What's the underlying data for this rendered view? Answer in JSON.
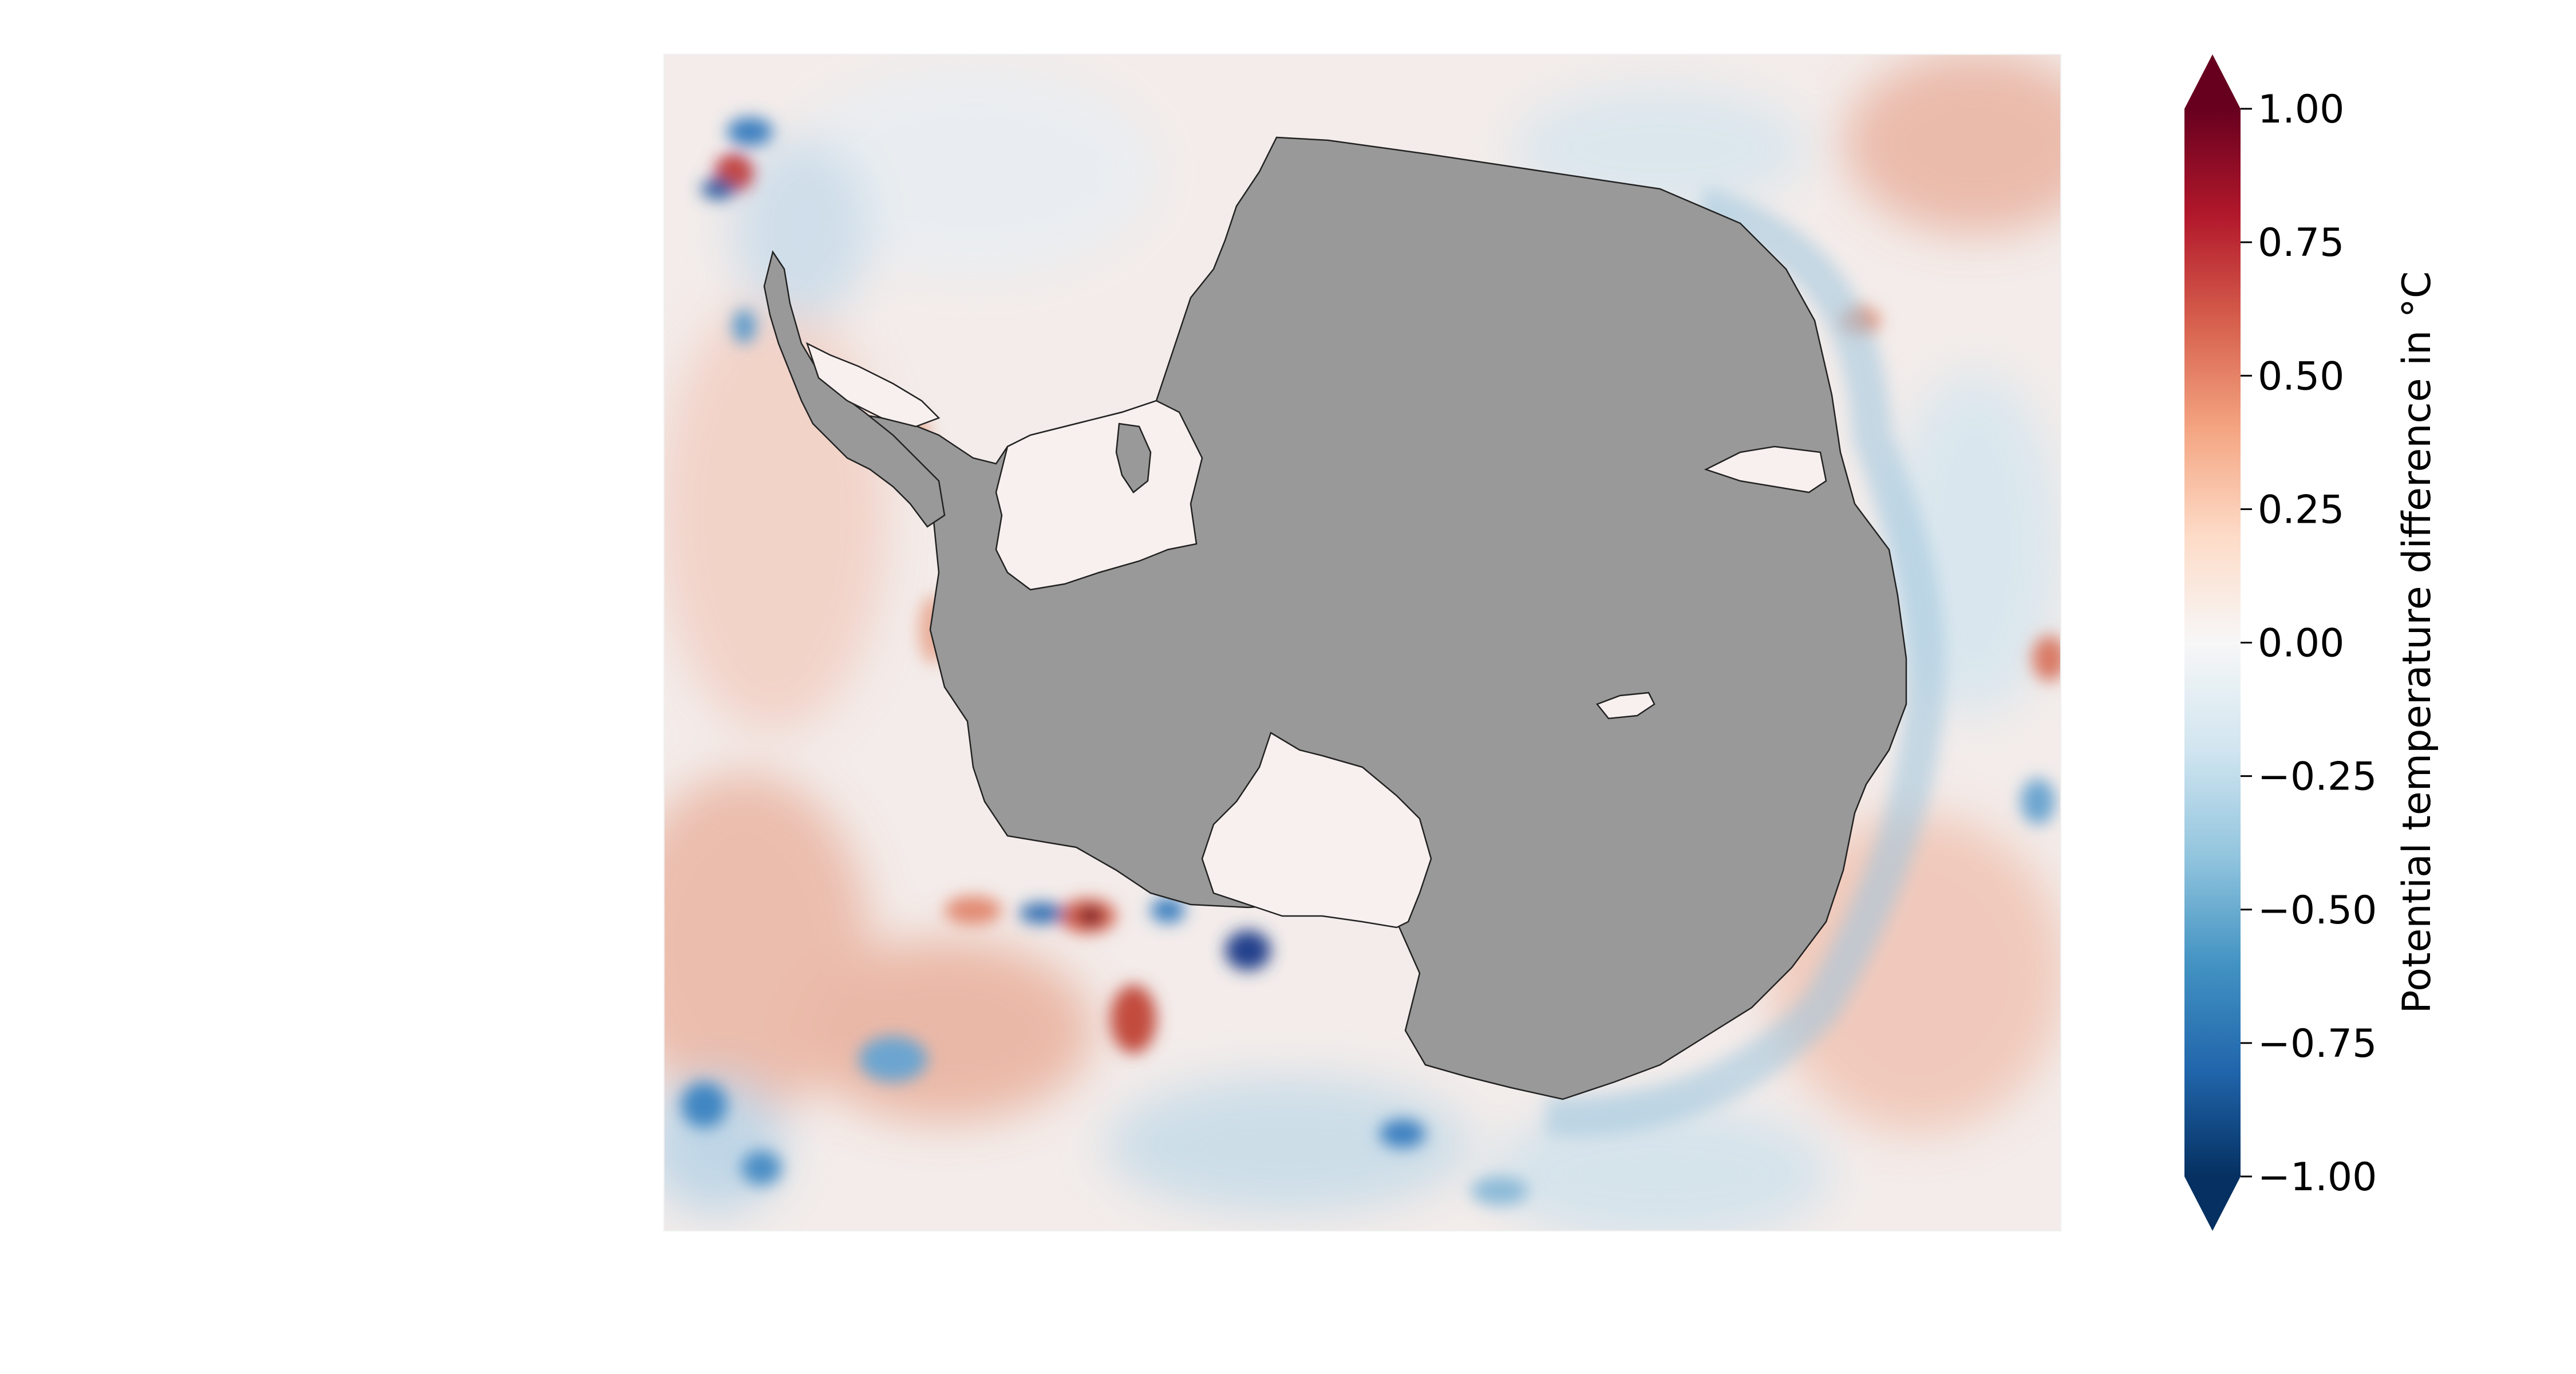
{
  "colorbar": {
    "label": "Potential temperature difference in °C",
    "min": -1.0,
    "max": 1.0,
    "extend": "both",
    "orientation": "vertical",
    "colormap": "RdBu_r",
    "ticks": [
      {
        "value": 1.0,
        "label": "1.00"
      },
      {
        "value": 0.75,
        "label": "0.75"
      },
      {
        "value": 0.5,
        "label": "0.50"
      },
      {
        "value": 0.25,
        "label": "0.25"
      },
      {
        "value": 0.0,
        "label": "0.00"
      },
      {
        "value": -0.25,
        "label": "−0.25"
      },
      {
        "value": -0.5,
        "label": "−0.50"
      },
      {
        "value": -0.75,
        "label": "−0.75"
      },
      {
        "value": -1.0,
        "label": "−1.00"
      }
    ],
    "color_stops": [
      "#053061",
      "#2166ac",
      "#4393c3",
      "#92c5de",
      "#d1e5f0",
      "#f7f7f7",
      "#fddbc7",
      "#f4a582",
      "#d6604d",
      "#b2182b",
      "#67001f"
    ]
  },
  "map": {
    "region": "Antarctica / Southern Ocean",
    "projection": "south polar stereographic",
    "land_color": "#999999",
    "ice_shelf_color": "#f7f0ee",
    "coastline_color": "#222222"
  }
}
